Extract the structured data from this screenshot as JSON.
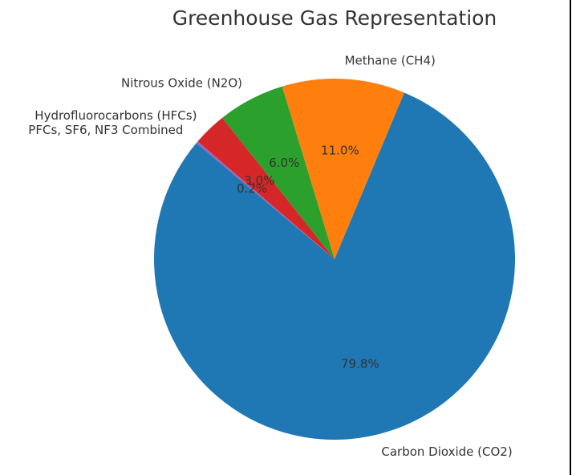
{
  "chart_data": {
    "type": "pie",
    "title": "Greenhouse Gas Representation",
    "categories": [
      "Carbon Dioxide (CO2)",
      "Methane (CH4)",
      "Nitrous Oxide (N2O)",
      "Hydrofluorocarbons (HFCs)",
      "PFCs, SF6, NF3 Combined"
    ],
    "values": [
      79.8,
      11.0,
      6.0,
      3.0,
      0.2
    ],
    "value_labels": [
      "79.8%",
      "11.0%",
      "6.0%",
      "3.0%",
      "0.2%"
    ],
    "colors": [
      "#1f77b4",
      "#ff7f0e",
      "#2ca02c",
      "#d62728",
      "#9467bd"
    ]
  }
}
